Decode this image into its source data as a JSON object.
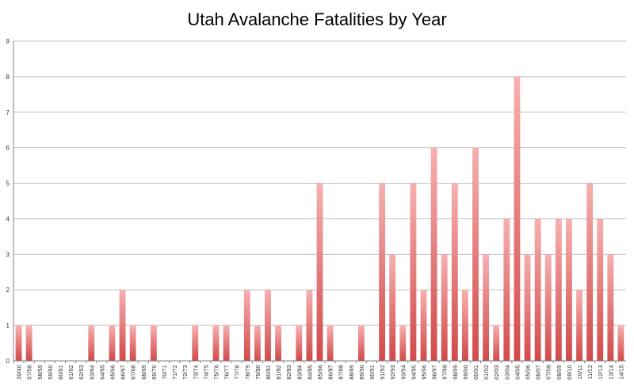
{
  "chart_data": {
    "type": "bar",
    "title": "Utah Avalanche Fatalities by Year",
    "xlabel": "",
    "ylabel": "",
    "ylim": [
      0,
      9
    ],
    "yticks": [
      0,
      1,
      2,
      3,
      4,
      5,
      6,
      7,
      8,
      9
    ],
    "grid": true,
    "legend": "none",
    "bar_color_top": "#f7b0b0",
    "bar_color_bottom": "#d14a4a",
    "grid_color": "#bfbfbf",
    "categories": [
      "39/40",
      "57/58",
      "58/59",
      "59/60",
      "60/61",
      "61/62",
      "62/63",
      "63/64",
      "64/65",
      "65/66",
      "66/67",
      "67/68",
      "68/69",
      "69/70",
      "70/71",
      "71/72",
      "72/73",
      "73/74",
      "74/75",
      "75/76",
      "76/77",
      "77/78",
      "78/79",
      "79/80",
      "80/81",
      "81/82",
      "82/83",
      "83/84",
      "84/85",
      "85/86",
      "86/87",
      "87/88",
      "88/89",
      "89/90",
      "90/91",
      "91/92",
      "92/93",
      "93/94",
      "94/95",
      "95/96",
      "96/97",
      "97/98",
      "98/99",
      "99/00",
      "00/01",
      "01/02",
      "02/03",
      "03/04",
      "04/05",
      "05/06",
      "06/07",
      "07/08",
      "08/09",
      "09/10",
      "10/11",
      "11/12",
      "12/13",
      "13/14",
      "14/15"
    ],
    "values": [
      1,
      1,
      0,
      0,
      0,
      0,
      0,
      1,
      0,
      1,
      2,
      1,
      0,
      1,
      0,
      0,
      0,
      1,
      0,
      1,
      1,
      0,
      2,
      1,
      2,
      1,
      0,
      1,
      2,
      5,
      1,
      0,
      0,
      1,
      0,
      5,
      3,
      1,
      5,
      2,
      6,
      3,
      5,
      2,
      6,
      3,
      1,
      4,
      8,
      3,
      4,
      3,
      4,
      4,
      2,
      5,
      4,
      3,
      1
    ]
  }
}
